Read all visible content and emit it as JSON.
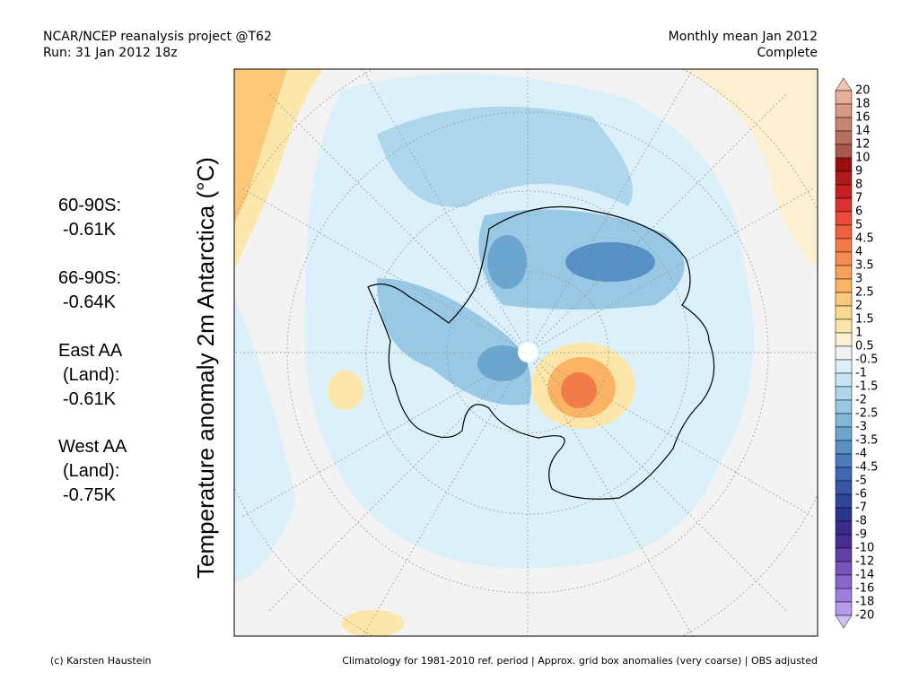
{
  "header": {
    "left": [
      "NCAR/NCEP reanalysis project @T62",
      "Run: 31 Jan 2012 18z"
    ],
    "right": [
      "Monthly mean Jan 2012",
      "Complete"
    ]
  },
  "axis_label": "Temperature anomaly 2m Antarctica (°C)",
  "stats": [
    [
      "60-90S:",
      "-0.61K"
    ],
    [
      "66-90S:",
      "-0.64K"
    ],
    [
      "East AA",
      "(Land):",
      "-0.61K"
    ],
    [
      "West AA",
      "(Land):",
      "-0.75K"
    ]
  ],
  "colorbar": {
    "labels": [
      20,
      18,
      16,
      14,
      12,
      10,
      9,
      8,
      7,
      6,
      5,
      4.5,
      4,
      3.5,
      3,
      2.5,
      2,
      1.5,
      1,
      0.5,
      -0.5,
      -1,
      -1.5,
      -2,
      -2.5,
      -3,
      -3.5,
      -4,
      -4.5,
      -5,
      -6,
      -7,
      -8,
      -9,
      -10,
      -12,
      -14,
      -16,
      -18,
      -20
    ],
    "colors": [
      "#f4c4b0",
      "#e8b09a",
      "#d99a84",
      "#c98470",
      "#b86e5c",
      "#a85848",
      "#9a1010",
      "#b01a1a",
      "#c82020",
      "#dc3030",
      "#ec4a3a",
      "#f06040",
      "#f47a48",
      "#f68c50",
      "#f8a058",
      "#fab464",
      "#fcc878",
      "#fdd890",
      "#fde6aa",
      "#fdf0d0",
      "#f2f2f2",
      "#dcf0fa",
      "#c6e4f4",
      "#aed6ec",
      "#98c8e4",
      "#80b8da",
      "#6aa6d0",
      "#5690c4",
      "#4a7cba",
      "#4068b0",
      "#3656a4",
      "#2e4698",
      "#2a368c",
      "#3a2a8a",
      "#4a2c96",
      "#6040a8",
      "#7454bc",
      "#8868cc",
      "#9c80dc",
      "#b49aea",
      "#ccc0f4"
    ]
  },
  "footer": {
    "left": "(c) Karsten Haustein",
    "right": "Climatology for 1981-2010 ref. period | Approx. grid box anomalies (very coarse) | OBS adjusted"
  }
}
